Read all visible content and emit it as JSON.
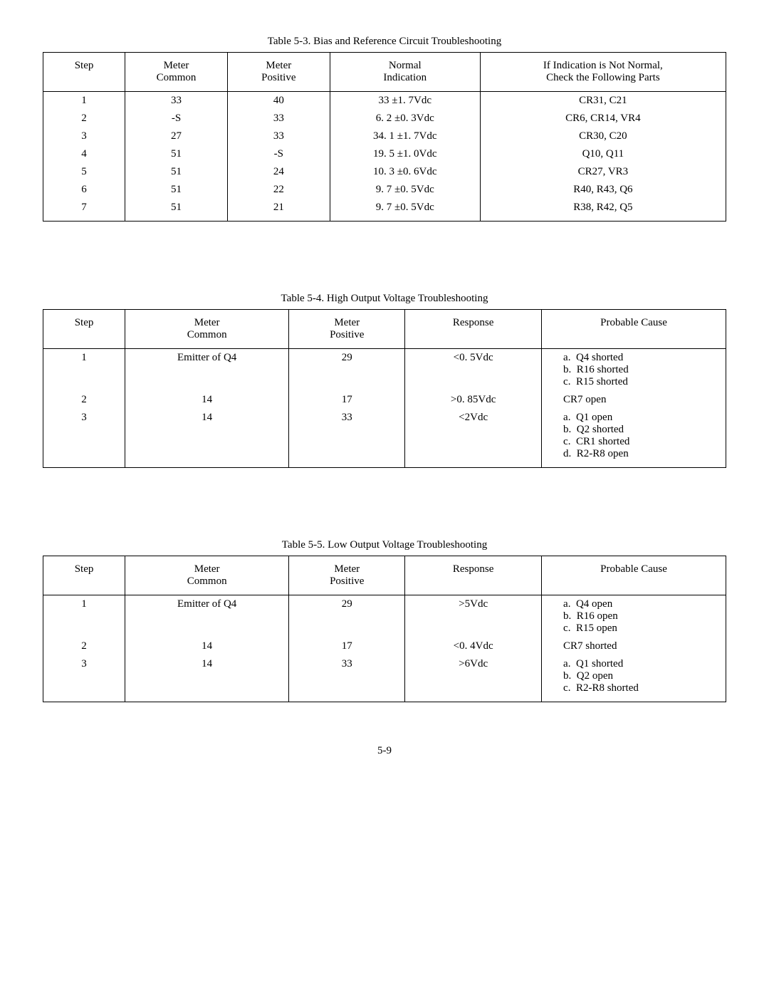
{
  "page_number": "5-9",
  "table53": {
    "caption": "Table 5-3.  Bias and Reference Circuit Troubleshooting",
    "headers": [
      "Step",
      "Meter\nCommon",
      "Meter\nPositive",
      "Normal\nIndication",
      "If Indication is Not Normal,\nCheck the Following Parts"
    ],
    "rows": [
      [
        "1",
        "33",
        "40",
        "33 ±1. 7Vdc",
        "CR31, C21"
      ],
      [
        "2",
        "-S",
        "33",
        "6. 2 ±0. 3Vdc",
        "CR6, CR14, VR4"
      ],
      [
        "3",
        "27",
        "33",
        "34. 1 ±1. 7Vdc",
        "CR30, C20"
      ],
      [
        "4",
        "51",
        "-S",
        "19. 5 ±1. 0Vdc",
        "Q10, Q11"
      ],
      [
        "5",
        "51",
        "24",
        "10. 3 ±0. 6Vdc",
        "CR27, VR3"
      ],
      [
        "6",
        "51",
        "22",
        "9. 7 ±0. 5Vdc",
        "R40, R43, Q6"
      ],
      [
        "7",
        "51",
        "21",
        "9. 7 ±0. 5Vdc",
        "R38, R42, Q5"
      ]
    ]
  },
  "table54": {
    "caption": "Table 5-4.  High Output Voltage Troubleshooting",
    "headers": [
      "Step",
      "Meter\nCommon",
      "Meter\nPositive",
      "Response",
      "Probable Cause"
    ],
    "rows": [
      {
        "step": "1",
        "common": "Emitter of Q4",
        "positive": "29",
        "response": "<0. 5Vdc",
        "cause": [
          "a.  Q4 shorted",
          "b.  R16 shorted",
          "c.  R15 shorted"
        ]
      },
      {
        "step": "2",
        "common": "14",
        "positive": "17",
        "response": ">0. 85Vdc",
        "cause": [
          "CR7 open"
        ]
      },
      {
        "step": "3",
        "common": "14",
        "positive": "33",
        "response": "<2Vdc",
        "cause": [
          "a.  Q1 open",
          "b.  Q2 shorted",
          "c.  CR1 shorted",
          "d.  R2-R8 open"
        ]
      }
    ]
  },
  "table55": {
    "caption": "Table 5-5.  Low Output Voltage Troubleshooting",
    "headers": [
      "Step",
      "Meter\nCommon",
      "Meter\nPositive",
      "Response",
      "Probable Cause"
    ],
    "rows": [
      {
        "step": "1",
        "common": "Emitter of Q4",
        "positive": "29",
        "response": ">5Vdc",
        "cause": [
          "a.  Q4 open",
          "b.  R16 open",
          "c.  R15 open"
        ]
      },
      {
        "step": "2",
        "common": "14",
        "positive": "17",
        "response": "<0. 4Vdc",
        "cause": [
          "CR7 shorted"
        ]
      },
      {
        "step": "3",
        "common": "14",
        "positive": "33",
        "response": ">6Vdc",
        "cause": [
          "a.  Q1 shorted",
          "b.  Q2 open",
          "c.  R2-R8 shorted"
        ]
      }
    ]
  }
}
